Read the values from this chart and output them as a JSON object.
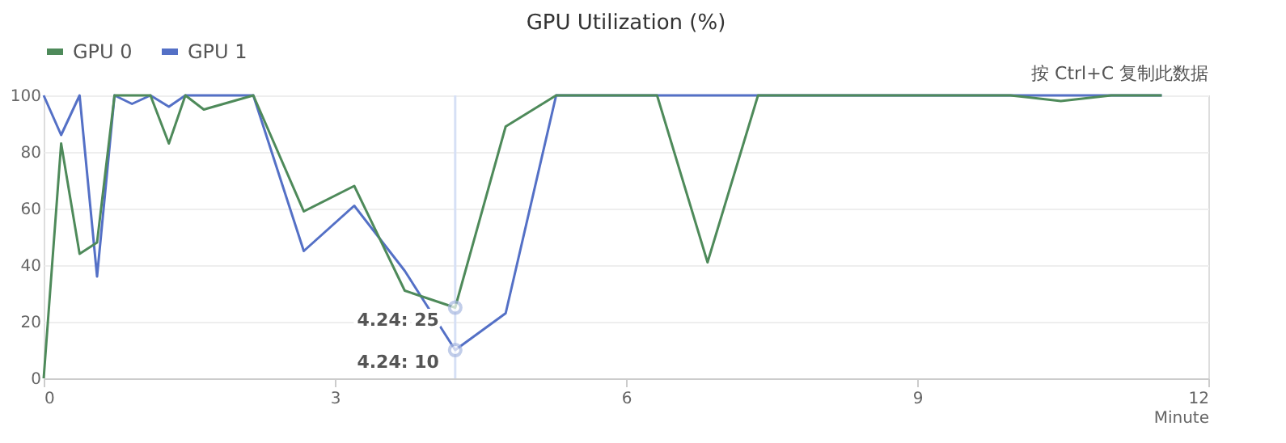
{
  "chart_data": {
    "type": "line",
    "title": "GPU Utilization (%)",
    "xlabel": "Minute",
    "x": [
      0,
      0.18,
      0.37,
      0.55,
      0.73,
      0.91,
      1.1,
      1.29,
      1.46,
      1.65,
      2.16,
      2.68,
      3.2,
      3.72,
      4.24,
      4.76,
      5.28,
      5.8,
      6.32,
      6.84,
      7.36,
      7.88,
      8.4,
      8.92,
      9.44,
      9.96,
      10.48,
      11.0,
      11.52
    ],
    "series": [
      {
        "name": "GPU 0",
        "color": "#4e8a5a",
        "values": [
          0,
          83,
          44,
          48,
          100,
          100,
          100,
          83,
          100,
          95,
          100,
          59,
          68,
          31,
          25,
          89,
          100,
          100,
          100,
          41,
          100,
          100,
          100,
          100,
          100,
          100,
          98,
          100,
          100
        ]
      },
      {
        "name": "GPU 1",
        "color": "#5470c6",
        "values": [
          100,
          86,
          100,
          36,
          100,
          97,
          100,
          96,
          100,
          100,
          100,
          45,
          61,
          38,
          10,
          23,
          100,
          100,
          100,
          100,
          100,
          100,
          100,
          100,
          100,
          100,
          100,
          100,
          100
        ]
      }
    ],
    "xlim": [
      0,
      12
    ],
    "xticks": [
      0,
      3,
      6,
      9,
      12
    ],
    "ylim": [
      0,
      100
    ],
    "yticks": [
      0,
      20,
      40,
      60,
      80,
      100
    ],
    "grid": "y",
    "legend": "top",
    "marker": "none",
    "line_style": "solid",
    "ref_lines": [
      {
        "axis": "x",
        "value": 4.24,
        "label": null,
        "color": "#d6e0f5"
      }
    ],
    "annotations": [
      {
        "text": "4.24: 25",
        "x": 4.24,
        "y": 25
      },
      {
        "text": "4.24: 10",
        "x": 4.24,
        "y": 10
      },
      "按 Ctrl+C 复制此数据"
    ]
  }
}
